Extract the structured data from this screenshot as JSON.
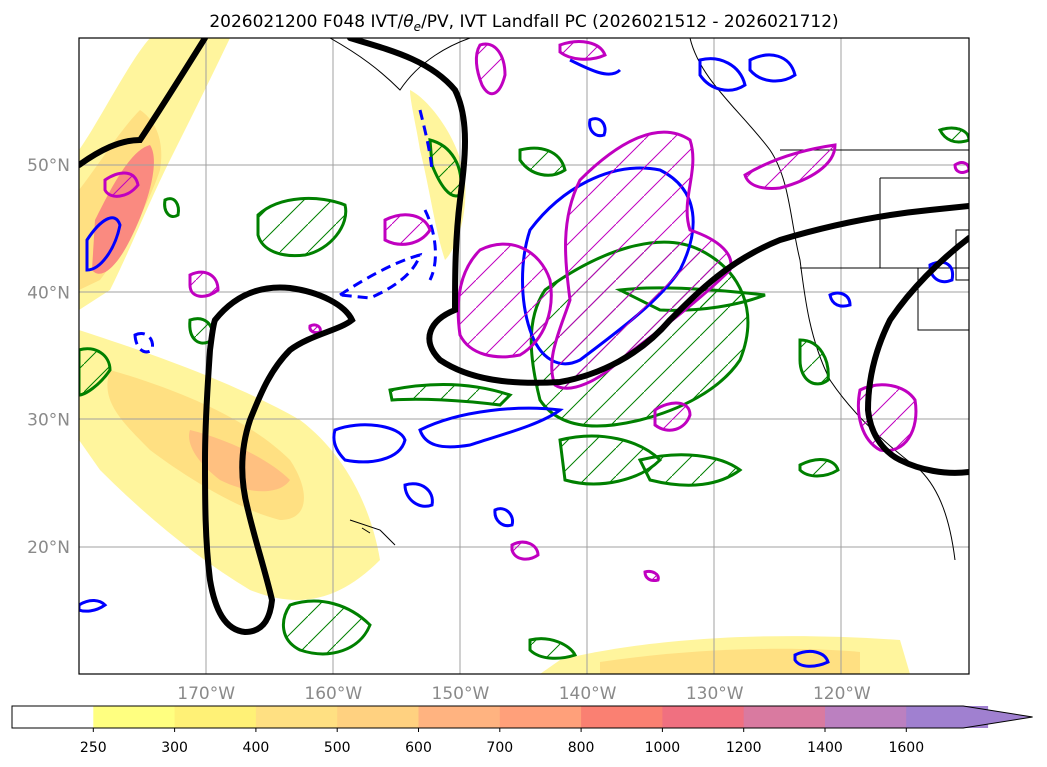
{
  "chart_data": {
    "type": "contour-map",
    "title": "2026021200 F048 IVT/θe/PV, IVT Landfall PC (2026021512 - 2026021712)",
    "title_parts": {
      "pre": "2026021200 F048 IVT/",
      "theta": "θ",
      "sub": "e",
      "post": "/PV, IVT Landfall PC (2026021512 - 2026021712)"
    },
    "map": {
      "lon_range": [
        -180,
        -110
      ],
      "lat_range": [
        10,
        60
      ],
      "x_ticks": [
        {
          "lon": -170,
          "label": "170°W"
        },
        {
          "lon": -160,
          "label": "160°W"
        },
        {
          "lon": -150,
          "label": "150°W"
        },
        {
          "lon": -140,
          "label": "140°W"
        },
        {
          "lon": -130,
          "label": "130°W"
        },
        {
          "lon": -120,
          "label": "120°W"
        }
      ],
      "y_ticks": [
        {
          "lat": 20,
          "label": "20°N"
        },
        {
          "lat": 30,
          "label": "30°N"
        },
        {
          "lat": 40,
          "label": "40°N"
        },
        {
          "lat": 50,
          "label": "50°N"
        }
      ],
      "grid": true
    },
    "colorbar": {
      "levels": [
        250,
        300,
        400,
        500,
        600,
        700,
        800,
        1000,
        1200,
        1400,
        1600
      ],
      "colors": [
        "#ffffff",
        "#ffff80",
        "#fff176",
        "#ffe082",
        "#ffd180",
        "#ffb380",
        "#ffa07a",
        "#fa8072",
        "#f07080",
        "#d97aa0",
        "#bb80c0",
        "#a080d0"
      ],
      "extend": "max",
      "placement": "bottom"
    },
    "contour_colors": {
      "ivt_fill": "#ffd54f",
      "pv_green": "#008000",
      "theta_blue": "#0000ff",
      "magenta": "#c000c0",
      "black": "#000000"
    }
  }
}
